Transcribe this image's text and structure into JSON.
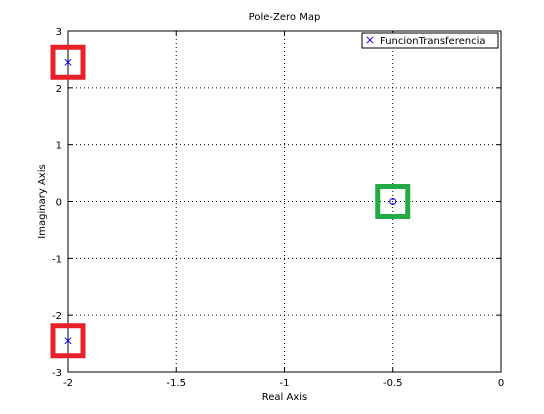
{
  "chart_data": {
    "type": "scatter",
    "title": "Pole-Zero Map",
    "xlabel": "Real Axis",
    "ylabel": "Imaginary Axis",
    "xlim": [
      -2,
      0
    ],
    "ylim": [
      -3,
      3
    ],
    "grid": true,
    "legend_position": "top-right",
    "xticks": [
      {
        "value": -2,
        "label": "-2"
      },
      {
        "value": -1.5,
        "label": "-1.5"
      },
      {
        "value": -1,
        "label": "-1"
      },
      {
        "value": -0.5,
        "label": "-0.5"
      },
      {
        "value": 0,
        "label": "0"
      }
    ],
    "yticks": [
      {
        "value": -3,
        "label": "-3"
      },
      {
        "value": -2,
        "label": "-2"
      },
      {
        "value": -1,
        "label": "-1"
      },
      {
        "value": 0,
        "label": "0"
      },
      {
        "value": 1,
        "label": "1"
      },
      {
        "value": 2,
        "label": "2"
      },
      {
        "value": 3,
        "label": "3"
      }
    ],
    "series": [
      {
        "name": "FuncionTransferencia",
        "color": "#0000ff",
        "poles": [
          {
            "x": -2.0,
            "y": 2.45
          },
          {
            "x": -2.0,
            "y": -2.45
          }
        ],
        "zeros": [
          {
            "x": -0.5,
            "y": 0
          }
        ]
      }
    ],
    "highlight_boxes": [
      {
        "color": "#e8202a",
        "x": -2.0,
        "y": 2.45,
        "label": "pole-highlight-upper"
      },
      {
        "color": "#e8202a",
        "x": -2.0,
        "y": -2.45,
        "label": "pole-highlight-lower"
      },
      {
        "color": "#22aa44",
        "x": -0.5,
        "y": 0,
        "label": "zero-highlight"
      }
    ]
  }
}
